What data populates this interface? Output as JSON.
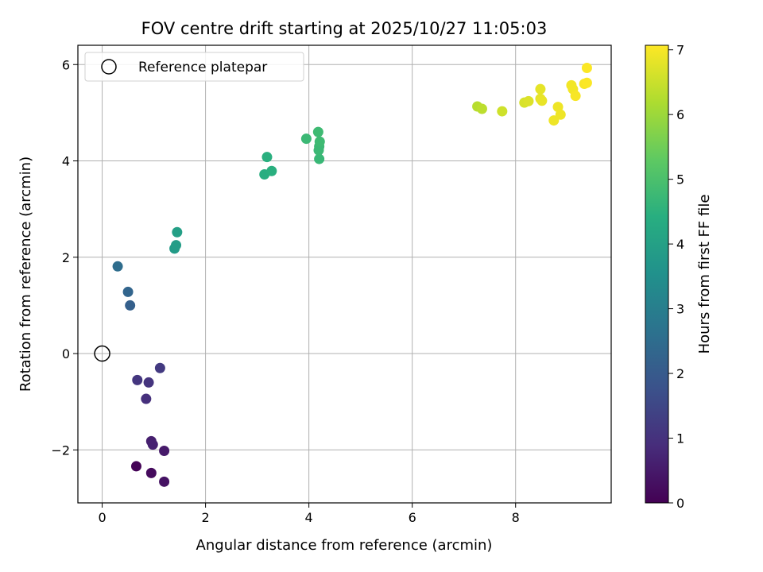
{
  "chart_data": {
    "type": "scatter",
    "title": "FOV centre drift starting at 2025/10/27 11:05:03",
    "xlabel": "Angular distance from reference (arcmin)",
    "ylabel": "Rotation from reference (arcmin)",
    "xlim": [
      -0.47,
      9.85
    ],
    "ylim": [
      -3.1,
      6.4
    ],
    "x_ticks": [
      0,
      2,
      4,
      6,
      8
    ],
    "y_ticks": [
      -2,
      0,
      2,
      4,
      6
    ],
    "x_tick_labels": [
      "0",
      "2",
      "4",
      "6",
      "8"
    ],
    "y_tick_labels": [
      "−2",
      "0",
      "2",
      "4",
      "6"
    ],
    "grid": true,
    "legend": {
      "placement": "top-left",
      "entries": [
        {
          "label": "Reference platepar",
          "marker": "open-circle"
        }
      ]
    },
    "reference_point": {
      "x": 0,
      "y": 0
    },
    "colorbar": {
      "label": "Hours from first FF file",
      "range": [
        0,
        7.07
      ],
      "ticks": [
        0,
        1,
        2,
        3,
        4,
        5,
        6,
        7
      ],
      "tick_labels": [
        "0",
        "1",
        "2",
        "3",
        "4",
        "5",
        "6",
        "7"
      ],
      "colormap": "viridis"
    },
    "points": [
      {
        "x": 0.66,
        "y": -2.34,
        "c": 0.05
      },
      {
        "x": 0.95,
        "y": -2.48,
        "c": 0.2
      },
      {
        "x": 1.2,
        "y": -2.66,
        "c": 0.35
      },
      {
        "x": 1.2,
        "y": -2.02,
        "c": 0.5
      },
      {
        "x": 0.95,
        "y": -1.82,
        "c": 0.6
      },
      {
        "x": 0.98,
        "y": -1.89,
        "c": 0.65
      },
      {
        "x": 0.85,
        "y": -0.94,
        "c": 0.95
      },
      {
        "x": 0.9,
        "y": -0.6,
        "c": 1.05
      },
      {
        "x": 0.68,
        "y": -0.55,
        "c": 1.1
      },
      {
        "x": 1.12,
        "y": -0.3,
        "c": 1.2
      },
      {
        "x": 0.54,
        "y": 1.0,
        "c": 2.15
      },
      {
        "x": 0.5,
        "y": 1.28,
        "c": 2.3
      },
      {
        "x": 0.3,
        "y": 1.81,
        "c": 2.5
      },
      {
        "x": 1.4,
        "y": 2.18,
        "c": 3.85
      },
      {
        "x": 1.43,
        "y": 2.25,
        "c": 3.9
      },
      {
        "x": 1.45,
        "y": 2.52,
        "c": 3.95
      },
      {
        "x": 3.14,
        "y": 3.72,
        "c": 4.4
      },
      {
        "x": 3.28,
        "y": 3.79,
        "c": 4.45
      },
      {
        "x": 3.19,
        "y": 4.08,
        "c": 4.45
      },
      {
        "x": 3.95,
        "y": 4.46,
        "c": 4.75
      },
      {
        "x": 4.2,
        "y": 4.04,
        "c": 4.7
      },
      {
        "x": 4.19,
        "y": 4.22,
        "c": 4.75
      },
      {
        "x": 4.2,
        "y": 4.3,
        "c": 4.75
      },
      {
        "x": 4.21,
        "y": 4.4,
        "c": 4.8
      },
      {
        "x": 4.18,
        "y": 4.6,
        "c": 4.8
      },
      {
        "x": 7.26,
        "y": 5.13,
        "c": 6.3
      },
      {
        "x": 7.35,
        "y": 5.08,
        "c": 6.35
      },
      {
        "x": 7.74,
        "y": 5.03,
        "c": 6.55
      },
      {
        "x": 8.17,
        "y": 5.21,
        "c": 6.65
      },
      {
        "x": 8.25,
        "y": 5.24,
        "c": 6.7
      },
      {
        "x": 8.48,
        "y": 5.49,
        "c": 6.8
      },
      {
        "x": 8.48,
        "y": 5.29,
        "c": 6.8
      },
      {
        "x": 8.51,
        "y": 5.25,
        "c": 6.85
      },
      {
        "x": 8.74,
        "y": 4.84,
        "c": 6.9
      },
      {
        "x": 8.87,
        "y": 4.96,
        "c": 6.9
      },
      {
        "x": 8.82,
        "y": 5.12,
        "c": 6.9
      },
      {
        "x": 9.08,
        "y": 5.57,
        "c": 6.95
      },
      {
        "x": 9.11,
        "y": 5.49,
        "c": 6.95
      },
      {
        "x": 9.16,
        "y": 5.35,
        "c": 7.0
      },
      {
        "x": 9.33,
        "y": 5.6,
        "c": 7.0
      },
      {
        "x": 9.38,
        "y": 5.93,
        "c": 7.05
      },
      {
        "x": 9.38,
        "y": 5.62,
        "c": 7.05
      }
    ]
  }
}
